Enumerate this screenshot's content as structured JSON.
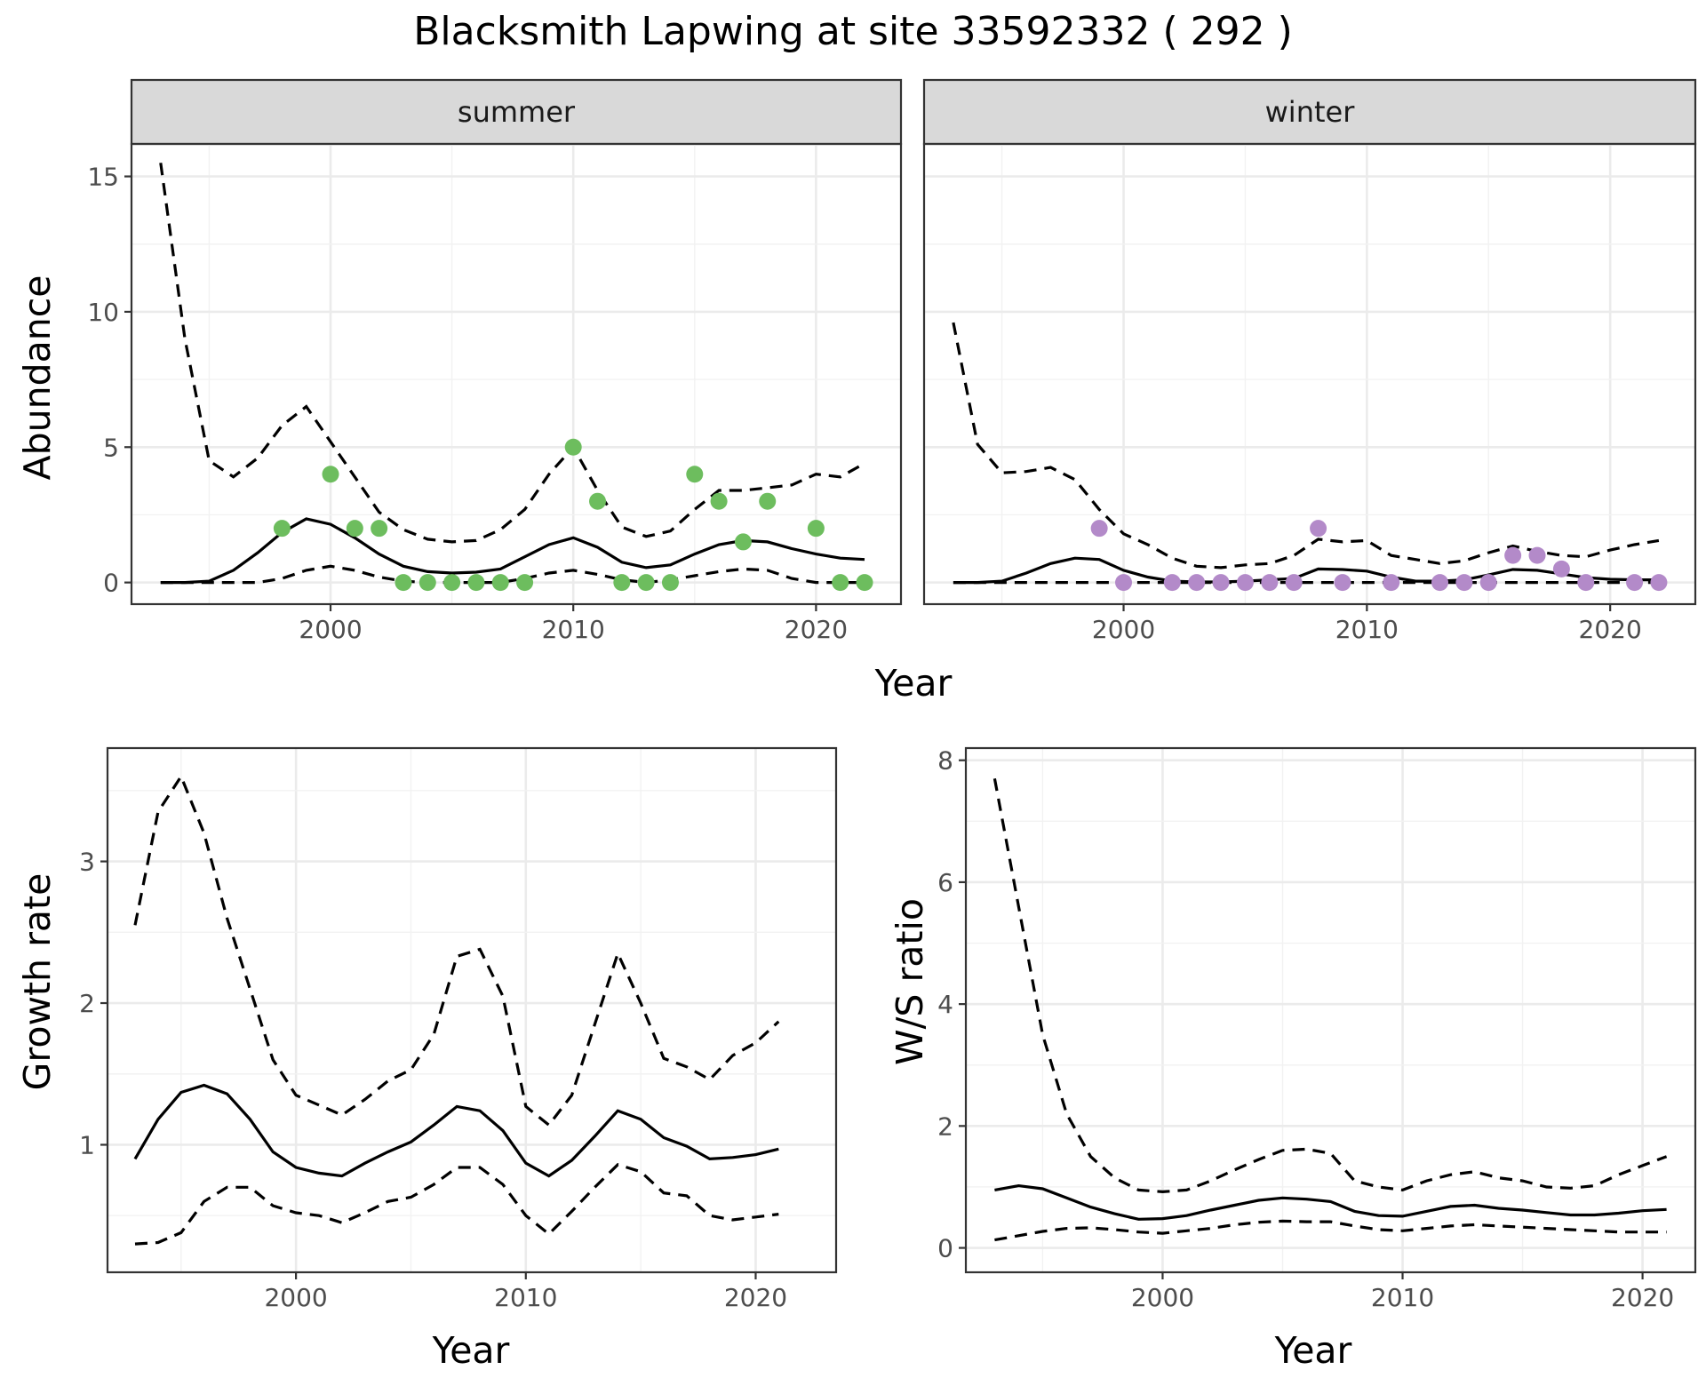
{
  "figure": {
    "title": "Blacksmith Lapwing at site 33592332 ( 292 )"
  },
  "chart_data": [
    {
      "id": "abundance",
      "type": "line",
      "ylabel": "Abundance",
      "xlabel": "Year",
      "xlim": [
        1991.8,
        2023.5
      ],
      "ylim": [
        -0.8,
        16.2
      ],
      "xticks": [
        2000,
        2010,
        2020
      ],
      "yticks": [
        0,
        5,
        10,
        15
      ],
      "grid": true,
      "legend": "none",
      "facets": [
        {
          "label": "summer",
          "point_color": "#6dbd5e",
          "x": [
            1993,
            1994,
            1995,
            1996,
            1997,
            1998,
            1999,
            2000,
            2001,
            2002,
            2003,
            2004,
            2005,
            2006,
            2007,
            2008,
            2009,
            2010,
            2011,
            2012,
            2013,
            2014,
            2015,
            2016,
            2017,
            2018,
            2019,
            2020,
            2021,
            2022
          ],
          "mean": [
            0.0,
            0.0,
            0.05,
            0.45,
            1.1,
            1.85,
            2.35,
            2.15,
            1.65,
            1.05,
            0.6,
            0.4,
            0.35,
            0.38,
            0.5,
            0.95,
            1.4,
            1.65,
            1.3,
            0.75,
            0.55,
            0.65,
            1.05,
            1.4,
            1.55,
            1.5,
            1.25,
            1.05,
            0.9,
            0.85
          ],
          "upper": [
            15.5,
            9.0,
            4.5,
            3.9,
            4.6,
            5.8,
            6.5,
            5.2,
            3.9,
            2.6,
            1.95,
            1.6,
            1.5,
            1.55,
            1.95,
            2.7,
            4.0,
            5.0,
            3.4,
            2.05,
            1.7,
            1.9,
            2.7,
            3.4,
            3.4,
            3.5,
            3.6,
            4.0,
            3.9,
            4.4
          ],
          "lower": [
            0.0,
            0.0,
            0.0,
            0.0,
            0.0,
            0.15,
            0.45,
            0.6,
            0.45,
            0.2,
            0.05,
            0.0,
            0.0,
            0.0,
            0.0,
            0.15,
            0.35,
            0.45,
            0.3,
            0.1,
            0.0,
            0.1,
            0.25,
            0.4,
            0.5,
            0.45,
            0.15,
            0.0,
            0.0,
            0.0
          ],
          "points": [
            {
              "x": 1998,
              "y": 2
            },
            {
              "x": 2000,
              "y": 4
            },
            {
              "x": 2001,
              "y": 2
            },
            {
              "x": 2002,
              "y": 2
            },
            {
              "x": 2003,
              "y": 0
            },
            {
              "x": 2004,
              "y": 0
            },
            {
              "x": 2005,
              "y": 0
            },
            {
              "x": 2006,
              "y": 0
            },
            {
              "x": 2007,
              "y": 0
            },
            {
              "x": 2008,
              "y": 0
            },
            {
              "x": 2010,
              "y": 5
            },
            {
              "x": 2011,
              "y": 3
            },
            {
              "x": 2012,
              "y": 0
            },
            {
              "x": 2013,
              "y": 0
            },
            {
              "x": 2014,
              "y": 0
            },
            {
              "x": 2015,
              "y": 4
            },
            {
              "x": 2016,
              "y": 3
            },
            {
              "x": 2017,
              "y": 1.5
            },
            {
              "x": 2018,
              "y": 3
            },
            {
              "x": 2020,
              "y": 2
            },
            {
              "x": 2021,
              "y": 0
            },
            {
              "x": 2022,
              "y": 0
            }
          ]
        },
        {
          "label": "winter",
          "point_color": "#b38ac9",
          "x": [
            1993,
            1994,
            1995,
            1996,
            1997,
            1998,
            1999,
            2000,
            2001,
            2002,
            2003,
            2004,
            2005,
            2006,
            2007,
            2008,
            2009,
            2010,
            2011,
            2012,
            2013,
            2014,
            2015,
            2016,
            2017,
            2018,
            2019,
            2020,
            2021,
            2022
          ],
          "mean": [
            0.0,
            0.0,
            0.05,
            0.35,
            0.7,
            0.9,
            0.85,
            0.45,
            0.2,
            0.05,
            0.02,
            0.02,
            0.05,
            0.1,
            0.15,
            0.5,
            0.48,
            0.42,
            0.2,
            0.05,
            0.05,
            0.1,
            0.28,
            0.48,
            0.45,
            0.32,
            0.18,
            0.12,
            0.1,
            0.1
          ],
          "upper": [
            9.6,
            5.1,
            4.05,
            4.1,
            4.25,
            3.8,
            2.7,
            1.8,
            1.4,
            0.9,
            0.6,
            0.55,
            0.65,
            0.7,
            1.0,
            1.6,
            1.5,
            1.55,
            1.0,
            0.85,
            0.7,
            0.8,
            1.1,
            1.35,
            1.15,
            1.0,
            0.95,
            1.2,
            1.4,
            1.55
          ],
          "lower": [
            0.0,
            0.0,
            0.0,
            0.0,
            0.0,
            0.0,
            0.0,
            0.0,
            0.0,
            0.0,
            0.0,
            0.0,
            0.0,
            0.0,
            0.0,
            0.0,
            0.0,
            0.0,
            0.0,
            0.0,
            0.0,
            0.0,
            0.0,
            0.0,
            0.0,
            0.0,
            0.0,
            0.0,
            0.0,
            0.0
          ],
          "points": [
            {
              "x": 1999,
              "y": 2
            },
            {
              "x": 2000,
              "y": 0
            },
            {
              "x": 2002,
              "y": 0
            },
            {
              "x": 2003,
              "y": 0
            },
            {
              "x": 2004,
              "y": 0
            },
            {
              "x": 2005,
              "y": 0
            },
            {
              "x": 2006,
              "y": 0
            },
            {
              "x": 2007,
              "y": 0
            },
            {
              "x": 2008,
              "y": 2
            },
            {
              "x": 2009,
              "y": 0
            },
            {
              "x": 2011,
              "y": 0
            },
            {
              "x": 2013,
              "y": 0
            },
            {
              "x": 2014,
              "y": 0
            },
            {
              "x": 2015,
              "y": 0
            },
            {
              "x": 2016,
              "y": 1
            },
            {
              "x": 2017,
              "y": 1
            },
            {
              "x": 2018,
              "y": 0.5
            },
            {
              "x": 2019,
              "y": 0
            },
            {
              "x": 2021,
              "y": 0
            },
            {
              "x": 2022,
              "y": 0
            }
          ]
        }
      ]
    },
    {
      "id": "growth",
      "type": "line",
      "ylabel": "Growth rate",
      "xlabel": "Year",
      "xlim": [
        1991.8,
        2023.5
      ],
      "ylim": [
        0.1,
        3.8
      ],
      "xticks": [
        2000,
        2010,
        2020
      ],
      "yticks": [
        1,
        2,
        3
      ],
      "grid": true,
      "legend": "none",
      "x": [
        1993,
        1994,
        1995,
        1996,
        1997,
        1998,
        1999,
        2000,
        2001,
        2002,
        2003,
        2004,
        2005,
        2006,
        2007,
        2008,
        2009,
        2010,
        2011,
        2012,
        2013,
        2014,
        2015,
        2016,
        2017,
        2018,
        2019,
        2020,
        2021
      ],
      "mean": [
        0.9,
        1.18,
        1.37,
        1.42,
        1.36,
        1.18,
        0.95,
        0.84,
        0.8,
        0.78,
        0.87,
        0.95,
        1.02,
        1.14,
        1.27,
        1.24,
        1.1,
        0.87,
        0.78,
        0.89,
        1.06,
        1.24,
        1.18,
        1.05,
        0.99,
        0.9,
        0.91,
        0.93,
        0.97
      ],
      "upper": [
        2.55,
        3.35,
        3.6,
        3.2,
        2.6,
        2.1,
        1.6,
        1.35,
        1.28,
        1.21,
        1.32,
        1.45,
        1.53,
        1.78,
        2.33,
        2.38,
        2.05,
        1.27,
        1.14,
        1.35,
        1.85,
        2.35,
        2.0,
        1.61,
        1.55,
        1.46,
        1.63,
        1.72,
        1.87
      ],
      "lower": [
        0.3,
        0.31,
        0.38,
        0.6,
        0.7,
        0.7,
        0.57,
        0.52,
        0.5,
        0.45,
        0.52,
        0.6,
        0.63,
        0.72,
        0.84,
        0.84,
        0.72,
        0.5,
        0.37,
        0.53,
        0.7,
        0.86,
        0.81,
        0.66,
        0.64,
        0.5,
        0.47,
        0.49,
        0.51
      ]
    },
    {
      "id": "ws-ratio",
      "type": "line",
      "ylabel": "W/S ratio",
      "xlabel": "Year",
      "xlim": [
        1991.8,
        2022.2
      ],
      "ylim": [
        -0.4,
        8.2
      ],
      "xticks": [
        2000,
        2010,
        2020
      ],
      "yticks": [
        0,
        2,
        4,
        6,
        8
      ],
      "grid": true,
      "legend": "none",
      "x": [
        1993,
        1994,
        1995,
        1996,
        1997,
        1998,
        1999,
        2000,
        2001,
        2002,
        2003,
        2004,
        2005,
        2006,
        2007,
        2008,
        2009,
        2010,
        2011,
        2012,
        2013,
        2014,
        2015,
        2016,
        2017,
        2018,
        2019,
        2020,
        2021
      ],
      "mean": [
        0.95,
        1.02,
        0.97,
        0.82,
        0.67,
        0.56,
        0.47,
        0.48,
        0.53,
        0.62,
        0.7,
        0.78,
        0.82,
        0.8,
        0.76,
        0.6,
        0.53,
        0.52,
        0.6,
        0.68,
        0.7,
        0.65,
        0.62,
        0.58,
        0.54,
        0.54,
        0.57,
        0.61,
        0.63
      ],
      "upper": [
        7.7,
        5.6,
        3.5,
        2.2,
        1.5,
        1.15,
        0.95,
        0.92,
        0.95,
        1.1,
        1.28,
        1.45,
        1.6,
        1.62,
        1.55,
        1.1,
        1.0,
        0.95,
        1.1,
        1.2,
        1.25,
        1.15,
        1.1,
        1.0,
        0.98,
        1.02,
        1.2,
        1.35,
        1.5
      ],
      "lower": [
        0.13,
        0.2,
        0.27,
        0.32,
        0.33,
        0.3,
        0.26,
        0.24,
        0.28,
        0.32,
        0.38,
        0.42,
        0.44,
        0.43,
        0.43,
        0.36,
        0.3,
        0.28,
        0.32,
        0.36,
        0.38,
        0.36,
        0.34,
        0.32,
        0.3,
        0.28,
        0.26,
        0.26,
        0.26
      ]
    }
  ]
}
